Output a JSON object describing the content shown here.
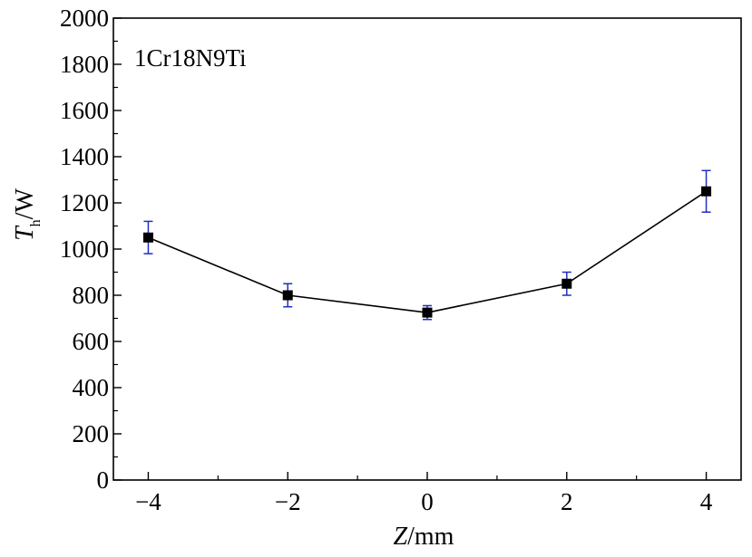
{
  "chart_data": {
    "type": "line",
    "annotation": "1Cr18N9Ti",
    "xlabel": {
      "italic": "Z",
      "rest": "/mm"
    },
    "ylabel": {
      "italic": "T",
      "subscript": "h",
      "rest": "/W"
    },
    "xlim": [
      -4.5,
      4.5
    ],
    "ylim": [
      0,
      2000
    ],
    "x_ticks": [
      -4,
      -2,
      0,
      2,
      4
    ],
    "x_tick_labels": [
      "−4",
      "−2",
      "0",
      "2",
      "4"
    ],
    "y_ticks": [
      0,
      200,
      400,
      600,
      800,
      1000,
      1200,
      1400,
      1600,
      1800,
      2000
    ],
    "y_tick_labels": [
      "0",
      "200",
      "400",
      "600",
      "800",
      "1000",
      "1200",
      "1400",
      "1600",
      "1800",
      "2000"
    ],
    "grid": false,
    "series": [
      {
        "x": [
          -4,
          -2,
          0,
          2,
          4
        ],
        "y": [
          1050,
          800,
          725,
          850,
          1250
        ],
        "error_low": [
          70,
          50,
          30,
          50,
          90
        ],
        "error_high": [
          70,
          50,
          30,
          50,
          90
        ],
        "line_color": "#000000",
        "marker_color": "#000000",
        "error_color": "#1f2fbf"
      }
    ]
  }
}
